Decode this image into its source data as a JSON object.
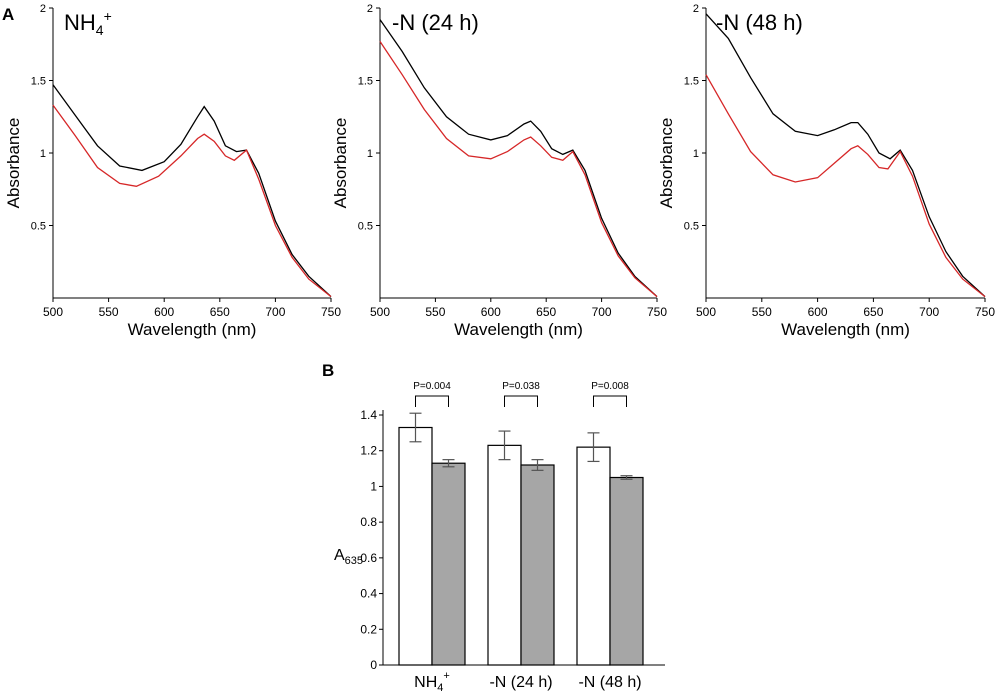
{
  "panel_labels": {
    "a": "A",
    "b": "B"
  },
  "chart_data": [
    {
      "type": "line",
      "title": "NH",
      "title_sub": "4",
      "title_sup": "+",
      "xlabel": "Wavelength (nm)",
      "ylabel": "Absorbance",
      "xlim": [
        500,
        750
      ],
      "ylim": [
        0,
        2
      ],
      "xticks": [
        500,
        550,
        600,
        650,
        700,
        750
      ],
      "yticks": [
        0.5,
        1,
        1.5,
        2
      ],
      "ytick_labels": [
        "0.5",
        "1",
        "1.5",
        "2"
      ],
      "series": [
        {
          "name": "black",
          "color": "#000000",
          "x": [
            500,
            520,
            540,
            560,
            580,
            600,
            615,
            630,
            636,
            645,
            655,
            665,
            674,
            685,
            700,
            715,
            730,
            750
          ],
          "y": [
            1.47,
            1.26,
            1.05,
            0.91,
            0.88,
            0.94,
            1.06,
            1.25,
            1.32,
            1.22,
            1.05,
            1.01,
            1.02,
            0.86,
            0.53,
            0.3,
            0.15,
            0.01
          ]
        },
        {
          "name": "red",
          "color": "#d62728",
          "x": [
            500,
            520,
            540,
            560,
            575,
            595,
            615,
            630,
            636,
            645,
            655,
            663,
            674,
            685,
            700,
            715,
            730,
            750
          ],
          "y": [
            1.33,
            1.12,
            0.9,
            0.79,
            0.77,
            0.84,
            0.98,
            1.1,
            1.13,
            1.08,
            0.98,
            0.95,
            1.02,
            0.82,
            0.5,
            0.28,
            0.13,
            0.01
          ]
        }
      ]
    },
    {
      "type": "line",
      "title": "-N (24 h)",
      "xlabel": "Wavelength (nm)",
      "ylabel": "Absorbance",
      "xlim": [
        500,
        750
      ],
      "ylim": [
        0,
        2
      ],
      "xticks": [
        500,
        550,
        600,
        650,
        700,
        750
      ],
      "yticks": [
        0.5,
        1,
        1.5,
        2
      ],
      "ytick_labels": [
        "0.5",
        "1",
        "1.5",
        "2"
      ],
      "series": [
        {
          "name": "black",
          "color": "#000000",
          "x": [
            500,
            520,
            540,
            560,
            580,
            600,
            615,
            630,
            636,
            645,
            655,
            665,
            674,
            685,
            700,
            715,
            730,
            750
          ],
          "y": [
            1.92,
            1.7,
            1.45,
            1.25,
            1.13,
            1.09,
            1.12,
            1.2,
            1.22,
            1.15,
            1.03,
            0.99,
            1.02,
            0.88,
            0.55,
            0.31,
            0.15,
            0.01
          ]
        },
        {
          "name": "red",
          "color": "#d62728",
          "x": [
            500,
            520,
            540,
            560,
            580,
            600,
            615,
            630,
            636,
            645,
            655,
            665,
            674,
            685,
            700,
            715,
            730,
            750
          ],
          "y": [
            1.77,
            1.54,
            1.3,
            1.1,
            0.98,
            0.96,
            1.01,
            1.09,
            1.11,
            1.05,
            0.97,
            0.95,
            1.01,
            0.85,
            0.52,
            0.29,
            0.14,
            0.01
          ]
        }
      ]
    },
    {
      "type": "line",
      "title": "-N (48 h)",
      "xlabel": "Wavelength (nm)",
      "ylabel": "Absorbance",
      "xlim": [
        500,
        750
      ],
      "ylim": [
        0,
        2
      ],
      "xticks": [
        500,
        550,
        600,
        650,
        700,
        750
      ],
      "yticks": [
        0.5,
        1,
        1.5,
        2
      ],
      "ytick_labels": [
        "0.5",
        "1",
        "1.5",
        "2"
      ],
      "series": [
        {
          "name": "black",
          "color": "#000000",
          "x": [
            500,
            520,
            540,
            560,
            580,
            600,
            615,
            630,
            636,
            645,
            655,
            665,
            674,
            685,
            700,
            715,
            730,
            750
          ],
          "y": [
            1.96,
            1.79,
            1.52,
            1.27,
            1.15,
            1.12,
            1.16,
            1.21,
            1.21,
            1.13,
            1.0,
            0.96,
            1.02,
            0.88,
            0.56,
            0.32,
            0.15,
            0.01
          ]
        },
        {
          "name": "red",
          "color": "#d62728",
          "x": [
            500,
            520,
            540,
            560,
            580,
            600,
            615,
            630,
            636,
            645,
            655,
            663,
            674,
            685,
            700,
            715,
            730,
            750
          ],
          "y": [
            1.54,
            1.27,
            1.01,
            0.85,
            0.8,
            0.83,
            0.93,
            1.03,
            1.05,
            0.99,
            0.9,
            0.89,
            1.01,
            0.84,
            0.51,
            0.28,
            0.13,
            0.01
          ]
        }
      ]
    },
    {
      "type": "bar",
      "ylabel": "A",
      "ylabel_sub": "635",
      "ylim": [
        0,
        1.4
      ],
      "yticks": [
        0,
        0.2,
        0.4,
        0.6,
        0.8,
        1,
        1.2,
        1.4
      ],
      "ytick_labels": [
        "0",
        "0.2",
        "0.4",
        "0.6",
        "0.8",
        "1",
        "1.2",
        "1.4"
      ],
      "categories": [
        {
          "main": "NH",
          "sub": "4",
          "sup": "+"
        },
        {
          "main": "-N (24 h)"
        },
        {
          "main": "-N (48 h)"
        }
      ],
      "series": [
        {
          "name": "white",
          "color": "#ffffff",
          "values": [
            1.33,
            1.23,
            1.22
          ],
          "errors": [
            0.08,
            0.08,
            0.08
          ]
        },
        {
          "name": "gray",
          "color": "#a6a6a6",
          "values": [
            1.13,
            1.12,
            1.05
          ],
          "errors": [
            0.02,
            0.03,
            0.01
          ]
        }
      ],
      "annotations": [
        "P=0.004",
        "P=0.038",
        "P=0.008"
      ]
    }
  ]
}
